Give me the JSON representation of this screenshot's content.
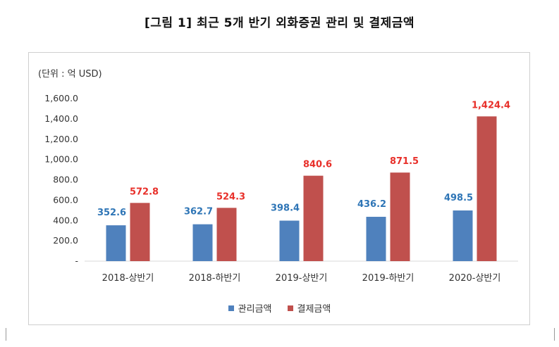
{
  "caption": "[그림 1] 최근 5개 반기 외화증권 관리 및 결제금액",
  "chart_data": {
    "type": "bar",
    "unit_label": "(단위 : 억 USD)",
    "categories": [
      "2018-상반기",
      "2018-하반기",
      "2019-상반기",
      "2019-하반기",
      "2020-상반기"
    ],
    "series": [
      {
        "name": "관리금액",
        "values": [
          352.6,
          362.7,
          398.4,
          436.2,
          498.5
        ],
        "labels": [
          "352.6",
          "362.7",
          "398.4",
          "436.2",
          "498.5"
        ],
        "color": "#4f81bd",
        "label_color": "#2e75b6"
      },
      {
        "name": "결제금액",
        "values": [
          572.8,
          524.3,
          840.6,
          871.5,
          1424.4
        ],
        "labels": [
          "572.8",
          "524.3",
          "840.6",
          "871.5",
          "1,424.4"
        ],
        "color": "#c0504d",
        "label_color": "#e8302a"
      }
    ],
    "yticks": [
      0,
      200,
      400,
      600,
      800,
      1000,
      1200,
      1400,
      1600
    ],
    "ytick_labels": [
      "-",
      "200.0",
      "400.0",
      "600.0",
      "800.0",
      "1,000.0",
      "1,200.0",
      "1,400.0",
      "1,600.0"
    ],
    "ylim": [
      0,
      1600
    ],
    "grid": false,
    "legend_position": "bottom"
  }
}
